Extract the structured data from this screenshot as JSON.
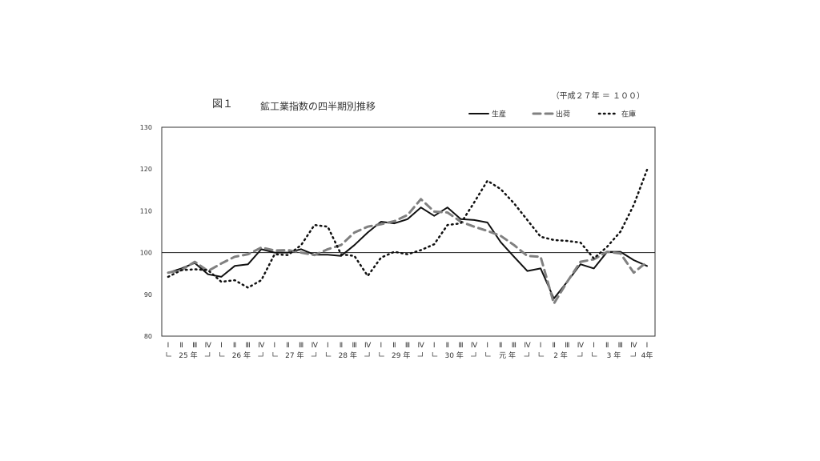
{
  "figure": {
    "number": "図１",
    "title": "鉱工業指数の四半期別推移",
    "base_note": "（平成２７年 ＝ １００）"
  },
  "chart_data": {
    "type": "line",
    "title": "鉱工業指数の四半期別推移",
    "xlabel": "",
    "ylabel": "",
    "ylim": [
      80,
      130
    ],
    "yticks": [
      80,
      90,
      100,
      110,
      120,
      130
    ],
    "reference_line": 100,
    "grid": false,
    "legend_position": "top-right",
    "quarter_labels": [
      "Ⅰ",
      "Ⅱ",
      "Ⅲ",
      "Ⅳ",
      "Ⅰ",
      "Ⅱ",
      "Ⅲ",
      "Ⅳ",
      "Ⅰ",
      "Ⅱ",
      "Ⅲ",
      "Ⅳ",
      "Ⅰ",
      "Ⅱ",
      "Ⅲ",
      "Ⅳ",
      "Ⅰ",
      "Ⅱ",
      "Ⅲ",
      "Ⅳ",
      "Ⅰ",
      "Ⅱ",
      "Ⅲ",
      "Ⅳ",
      "Ⅰ",
      "Ⅱ",
      "Ⅲ",
      "Ⅳ",
      "Ⅰ",
      "Ⅱ",
      "Ⅲ",
      "Ⅳ",
      "Ⅰ",
      "Ⅱ",
      "Ⅲ",
      "Ⅳ",
      "Ⅰ"
    ],
    "year_groups": [
      {
        "label": "25 年",
        "start": 0,
        "end": 3
      },
      {
        "label": "26 年",
        "start": 4,
        "end": 7
      },
      {
        "label": "27 年",
        "start": 8,
        "end": 11
      },
      {
        "label": "28 年",
        "start": 12,
        "end": 15
      },
      {
        "label": "29 年",
        "start": 16,
        "end": 19
      },
      {
        "label": "30 年",
        "start": 20,
        "end": 23
      },
      {
        "label": "元 年",
        "start": 24,
        "end": 27
      },
      {
        "label": "2 年",
        "start": 28,
        "end": 31
      },
      {
        "label": "3 年",
        "start": 32,
        "end": 35
      },
      {
        "label": "4年",
        "start": 36,
        "end": 36
      }
    ],
    "series": [
      {
        "name": "生産",
        "color": "#111111",
        "style": "solid",
        "values": [
          95.2,
          96.2,
          97.5,
          94.8,
          94.2,
          96.8,
          97.2,
          100.8,
          100.0,
          100.0,
          100.8,
          99.5,
          99.5,
          99.2,
          101.8,
          104.8,
          107.4,
          107.0,
          108.0,
          110.8,
          108.8,
          110.8,
          108.0,
          107.8,
          107.2,
          102.5,
          99.0,
          95.6,
          96.2,
          89.0,
          93.0,
          97.2,
          96.2,
          100.2,
          100.2,
          98.2,
          96.8
        ]
      },
      {
        "name": "出荷",
        "color": "#808080",
        "style": "dashed",
        "values": [
          95.2,
          95.8,
          97.8,
          95.6,
          97.4,
          99.0,
          99.6,
          101.2,
          100.5,
          100.6,
          100.0,
          99.4,
          100.8,
          101.8,
          104.8,
          106.2,
          106.8,
          107.5,
          109.0,
          112.8,
          109.8,
          109.6,
          107.4,
          106.2,
          105.2,
          104.0,
          101.8,
          99.2,
          99.0,
          87.8,
          93.0,
          97.8,
          98.4,
          100.2,
          99.8,
          95.2,
          97.8
        ]
      },
      {
        "name": "在庫",
        "color": "#111111",
        "style": "dotted",
        "values": [
          94.2,
          95.8,
          96.0,
          95.8,
          93.0,
          93.4,
          91.6,
          93.4,
          99.6,
          99.4,
          101.8,
          106.6,
          106.2,
          99.6,
          99.2,
          94.4,
          98.8,
          100.2,
          99.6,
          100.6,
          102.0,
          106.6,
          107.0,
          112.0,
          117.2,
          115.2,
          111.8,
          107.8,
          103.8,
          103.0,
          102.8,
          102.4,
          98.6,
          101.4,
          105.0,
          111.4,
          119.8
        ]
      }
    ]
  }
}
